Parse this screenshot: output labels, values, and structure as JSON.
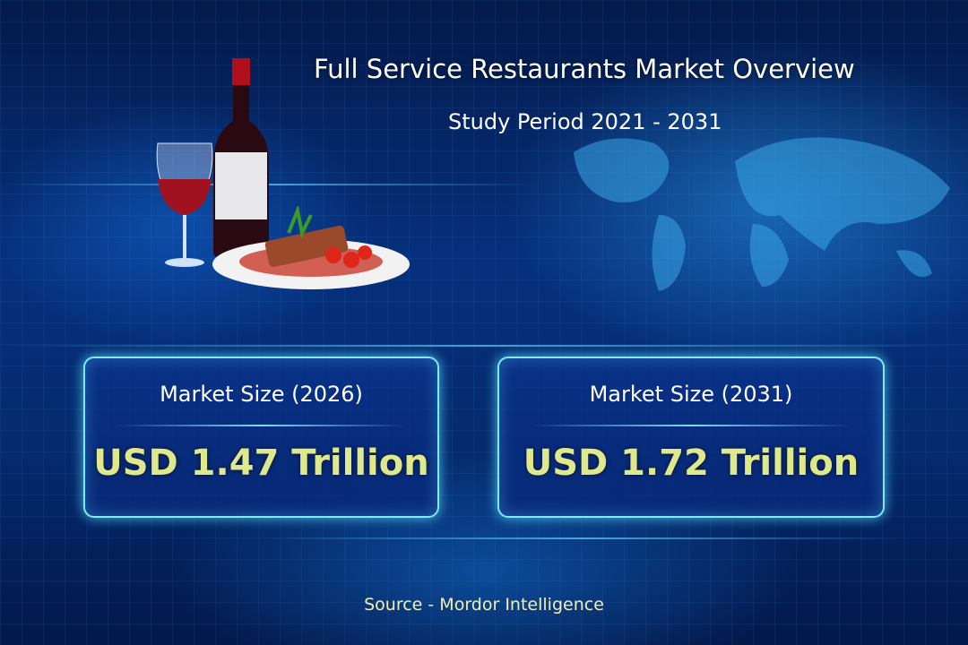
{
  "header": {
    "title": "Full Service Restaurants Market Overview",
    "subtitle": "Study Period 2021 - 2031"
  },
  "cards": [
    {
      "label": "Market Size (2026)",
      "value": "USD 1.47 Trillion"
    },
    {
      "label": "Market Size (2031)",
      "value": "USD 1.72 Trillion"
    }
  ],
  "footer": {
    "source": "Source  - Mordor Intelligence"
  },
  "colors": {
    "background": "#06307c",
    "card_border": "#7fe9ff",
    "value_text": "#dfe98a",
    "source_text": "#f3efb0"
  },
  "illustration": {
    "icons": [
      "wine-bottle-icon",
      "wine-glass-icon",
      "steak-plate-icon",
      "world-map-icon"
    ]
  }
}
